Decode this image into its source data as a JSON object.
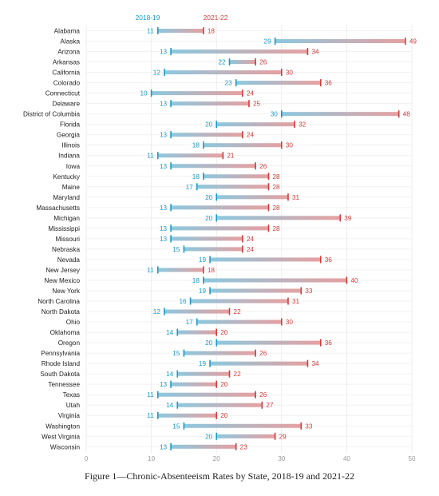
{
  "caption": "Figure 1—Chronic-Absenteeism Rates by State, 2018-19 and 2021-22",
  "chart_data": {
    "type": "dumbbell",
    "title": "",
    "series": [
      {
        "name": "2018-19",
        "color": "#1a9ac6"
      },
      {
        "name": "2021-22",
        "color": "#d23b3b"
      }
    ],
    "xlim": [
      0,
      50
    ],
    "xticks": [
      0,
      10,
      20,
      30,
      40,
      50
    ],
    "grid": true,
    "legend_position": "top",
    "rows": [
      {
        "state": "Alabama",
        "y2019": 11,
        "y2022": 18
      },
      {
        "state": "Alaska",
        "y2019": 29,
        "y2022": 49
      },
      {
        "state": "Arizona",
        "y2019": 13,
        "y2022": 34
      },
      {
        "state": "Arkansas",
        "y2019": 22,
        "y2022": 26
      },
      {
        "state": "California",
        "y2019": 12,
        "y2022": 30
      },
      {
        "state": "Colorado",
        "y2019": 23,
        "y2022": 36
      },
      {
        "state": "Connecticut",
        "y2019": 10,
        "y2022": 24
      },
      {
        "state": "Delaware",
        "y2019": 13,
        "y2022": 25
      },
      {
        "state": "District of Columbia",
        "y2019": 30,
        "y2022": 48
      },
      {
        "state": "Florida",
        "y2019": 20,
        "y2022": 32
      },
      {
        "state": "Georgia",
        "y2019": 13,
        "y2022": 24
      },
      {
        "state": "Illinois",
        "y2019": 18,
        "y2022": 30
      },
      {
        "state": "Indiana",
        "y2019": 11,
        "y2022": 21
      },
      {
        "state": "Iowa",
        "y2019": 13,
        "y2022": 26
      },
      {
        "state": "Kentucky",
        "y2019": 18,
        "y2022": 28
      },
      {
        "state": "Maine",
        "y2019": 17,
        "y2022": 28
      },
      {
        "state": "Maryland",
        "y2019": 20,
        "y2022": 31
      },
      {
        "state": "Massachusetts",
        "y2019": 13,
        "y2022": 28
      },
      {
        "state": "Michigan",
        "y2019": 20,
        "y2022": 39
      },
      {
        "state": "Mississippi",
        "y2019": 13,
        "y2022": 28
      },
      {
        "state": "Missouri",
        "y2019": 13,
        "y2022": 24
      },
      {
        "state": "Nebraska",
        "y2019": 15,
        "y2022": 24
      },
      {
        "state": "Nevada",
        "y2019": 19,
        "y2022": 36
      },
      {
        "state": "New Jersey",
        "y2019": 11,
        "y2022": 18
      },
      {
        "state": "New Mexico",
        "y2019": 18,
        "y2022": 40
      },
      {
        "state": "New York",
        "y2019": 19,
        "y2022": 33
      },
      {
        "state": "North Carolina",
        "y2019": 16,
        "y2022": 31
      },
      {
        "state": "North Dakota",
        "y2019": 12,
        "y2022": 22
      },
      {
        "state": "Ohio",
        "y2019": 17,
        "y2022": 30
      },
      {
        "state": "Oklahoma",
        "y2019": 14,
        "y2022": 20
      },
      {
        "state": "Oregon",
        "y2019": 20,
        "y2022": 36
      },
      {
        "state": "Pennsylvania",
        "y2019": 15,
        "y2022": 26
      },
      {
        "state": "Rhode Island",
        "y2019": 19,
        "y2022": 34
      },
      {
        "state": "South Dakota",
        "y2019": 14,
        "y2022": 22
      },
      {
        "state": "Tennessee",
        "y2019": 13,
        "y2022": 20
      },
      {
        "state": "Texas",
        "y2019": 11,
        "y2022": 26
      },
      {
        "state": "Utah",
        "y2019": 14,
        "y2022": 27
      },
      {
        "state": "Virginia",
        "y2019": 11,
        "y2022": 20
      },
      {
        "state": "Washington",
        "y2019": 15,
        "y2022": 33
      },
      {
        "state": "West Virginia",
        "y2019": 20,
        "y2022": 29
      },
      {
        "state": "Wisconsin",
        "y2019": 13,
        "y2022": 23
      }
    ]
  }
}
